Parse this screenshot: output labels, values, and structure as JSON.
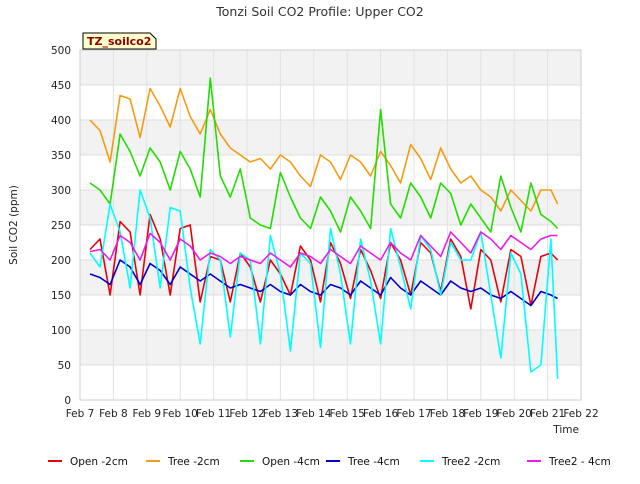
{
  "chart_data": {
    "type": "line",
    "title": "Tonzi Soil CO2 Profile: Upper CO2",
    "xlabel": "Time",
    "ylabel": "Soil CO2 (ppm)",
    "badge": "TZ_soilco2",
    "ylim": [
      0,
      500
    ],
    "yticks": [
      0,
      50,
      100,
      150,
      200,
      250,
      300,
      350,
      400,
      450,
      500
    ],
    "xlim": [
      7,
      22
    ],
    "xticks": [
      {
        "x": 7,
        "label": "Feb 7"
      },
      {
        "x": 8,
        "label": "Feb 8"
      },
      {
        "x": 9,
        "label": "Feb 9"
      },
      {
        "x": 10,
        "label": "Feb 10"
      },
      {
        "x": 11,
        "label": "Feb 11"
      },
      {
        "x": 12,
        "label": "Feb 12"
      },
      {
        "x": 13,
        "label": "Feb 13"
      },
      {
        "x": 14,
        "label": "Feb 14"
      },
      {
        "x": 15,
        "label": "Feb 15"
      },
      {
        "x": 16,
        "label": "Feb 16"
      },
      {
        "x": 17,
        "label": "Feb 17"
      },
      {
        "x": 18,
        "label": "Feb 18"
      },
      {
        "x": 19,
        "label": "Feb 19"
      },
      {
        "x": 20,
        "label": "Feb 20"
      },
      {
        "x": 21,
        "label": "Feb 21"
      },
      {
        "x": 22,
        "label": "Feb 22"
      }
    ],
    "grid": true,
    "legend_position": "bottom",
    "series": [
      {
        "name": "Open -2cm",
        "color": "#e8000b",
        "x": [
          7.3,
          7.6,
          7.9,
          8.2,
          8.5,
          8.8,
          9.1,
          9.4,
          9.7,
          10.0,
          10.3,
          10.6,
          10.9,
          11.2,
          11.5,
          11.8,
          12.1,
          12.4,
          12.7,
          13.0,
          13.3,
          13.6,
          13.9,
          14.2,
          14.5,
          14.8,
          15.1,
          15.4,
          15.7,
          16.0,
          16.3,
          16.6,
          16.9,
          17.2,
          17.5,
          17.8,
          18.1,
          18.4,
          18.7,
          19.0,
          19.3,
          19.6,
          19.9,
          20.2,
          20.5,
          20.8,
          21.1,
          21.3
        ],
        "y": [
          215,
          230,
          150,
          255,
          240,
          150,
          265,
          230,
          150,
          245,
          250,
          140,
          205,
          200,
          140,
          210,
          190,
          140,
          200,
          180,
          150,
          220,
          200,
          140,
          225,
          195,
          145,
          215,
          185,
          145,
          225,
          200,
          150,
          225,
          210,
          155,
          230,
          205,
          130,
          215,
          200,
          140,
          215,
          205,
          135,
          205,
          210,
          200
        ]
      },
      {
        "name": "Tree -2cm",
        "color": "#f39c12",
        "x": [
          7.3,
          7.6,
          7.9,
          8.2,
          8.5,
          8.8,
          9.1,
          9.4,
          9.7,
          10.0,
          10.3,
          10.6,
          10.9,
          11.2,
          11.5,
          11.8,
          12.1,
          12.4,
          12.7,
          13.0,
          13.3,
          13.6,
          13.9,
          14.2,
          14.5,
          14.8,
          15.1,
          15.4,
          15.7,
          16.0,
          16.3,
          16.6,
          16.9,
          17.2,
          17.5,
          17.8,
          18.1,
          18.4,
          18.7,
          19.0,
          19.3,
          19.6,
          19.9,
          20.2,
          20.5,
          20.8,
          21.1,
          21.3
        ],
        "y": [
          400,
          385,
          340,
          435,
          430,
          375,
          445,
          420,
          390,
          445,
          405,
          380,
          415,
          380,
          360,
          350,
          340,
          345,
          330,
          350,
          340,
          320,
          305,
          350,
          340,
          315,
          350,
          340,
          320,
          355,
          335,
          310,
          365,
          345,
          315,
          360,
          330,
          310,
          320,
          300,
          290,
          270,
          300,
          285,
          270,
          300,
          300,
          280
        ]
      },
      {
        "name": "Open -4cm",
        "color": "#22dd00",
        "x": [
          7.3,
          7.6,
          7.9,
          8.2,
          8.5,
          8.8,
          9.1,
          9.4,
          9.7,
          10.0,
          10.3,
          10.6,
          10.9,
          11.2,
          11.5,
          11.8,
          12.1,
          12.4,
          12.7,
          13.0,
          13.3,
          13.6,
          13.9,
          14.2,
          14.5,
          14.8,
          15.1,
          15.4,
          15.7,
          16.0,
          16.3,
          16.6,
          16.9,
          17.2,
          17.5,
          17.8,
          18.1,
          18.4,
          18.7,
          19.0,
          19.3,
          19.6,
          19.9,
          20.2,
          20.5,
          20.8,
          21.1,
          21.3
        ],
        "y": [
          310,
          300,
          280,
          380,
          355,
          320,
          360,
          340,
          300,
          355,
          330,
          290,
          460,
          320,
          290,
          330,
          260,
          250,
          245,
          325,
          290,
          260,
          245,
          290,
          270,
          240,
          290,
          270,
          245,
          415,
          280,
          260,
          310,
          290,
          260,
          310,
          295,
          250,
          280,
          260,
          240,
          320,
          275,
          240,
          310,
          265,
          255,
          245
        ]
      },
      {
        "name": "Tree -4cm",
        "color": "#0000cc",
        "x": [
          7.3,
          7.6,
          7.9,
          8.2,
          8.5,
          8.8,
          9.1,
          9.4,
          9.7,
          10.0,
          10.3,
          10.6,
          10.9,
          11.2,
          11.5,
          11.8,
          12.1,
          12.4,
          12.7,
          13.0,
          13.3,
          13.6,
          13.9,
          14.2,
          14.5,
          14.8,
          15.1,
          15.4,
          15.7,
          16.0,
          16.3,
          16.6,
          16.9,
          17.2,
          17.5,
          17.8,
          18.1,
          18.4,
          18.7,
          19.0,
          19.3,
          19.6,
          19.9,
          20.2,
          20.5,
          20.8,
          21.1,
          21.3
        ],
        "y": [
          180,
          175,
          165,
          200,
          190,
          165,
          195,
          185,
          165,
          190,
          180,
          170,
          180,
          170,
          160,
          165,
          160,
          155,
          165,
          155,
          150,
          165,
          155,
          150,
          165,
          160,
          150,
          170,
          160,
          150,
          175,
          160,
          150,
          170,
          160,
          150,
          170,
          160,
          155,
          160,
          150,
          145,
          155,
          145,
          135,
          155,
          150,
          145
        ]
      },
      {
        "name": "Tree2 -2cm",
        "color": "#00ffff",
        "x": [
          7.3,
          7.6,
          7.9,
          8.2,
          8.5,
          8.8,
          9.1,
          9.4,
          9.7,
          10.0,
          10.3,
          10.6,
          10.9,
          11.2,
          11.5,
          11.8,
          12.1,
          12.4,
          12.7,
          13.0,
          13.3,
          13.6,
          13.9,
          14.2,
          14.5,
          14.8,
          15.1,
          15.4,
          15.7,
          16.0,
          16.3,
          16.6,
          16.9,
          17.2,
          17.5,
          17.8,
          18.1,
          18.4,
          18.7,
          19.0,
          19.3,
          19.6,
          19.9,
          20.2,
          20.5,
          20.8,
          21.1,
          21.3
        ],
        "y": [
          210,
          190,
          280,
          240,
          160,
          300,
          260,
          160,
          275,
          270,
          160,
          80,
          215,
          200,
          90,
          210,
          200,
          80,
          235,
          180,
          70,
          210,
          195,
          75,
          245,
          180,
          80,
          230,
          170,
          80,
          245,
          190,
          130,
          235,
          215,
          150,
          225,
          200,
          200,
          240,
          150,
          60,
          210,
          180,
          40,
          50,
          230,
          30
        ]
      },
      {
        "name": "Tree2 - 4cm",
        "color": "#e81ce8",
        "x": [
          7.3,
          7.6,
          7.9,
          8.2,
          8.5,
          8.8,
          9.1,
          9.4,
          9.7,
          10.0,
          10.3,
          10.6,
          10.9,
          11.2,
          11.5,
          11.8,
          12.1,
          12.4,
          12.7,
          13.0,
          13.3,
          13.6,
          13.9,
          14.2,
          14.5,
          14.8,
          15.1,
          15.4,
          15.7,
          16.0,
          16.3,
          16.6,
          16.9,
          17.2,
          17.5,
          17.8,
          18.1,
          18.4,
          18.7,
          19.0,
          19.3,
          19.6,
          19.9,
          20.2,
          20.5,
          20.8,
          21.1,
          21.3
        ],
        "y": [
          212,
          215,
          200,
          235,
          225,
          200,
          238,
          225,
          200,
          230,
          220,
          200,
          210,
          205,
          195,
          205,
          200,
          195,
          210,
          200,
          190,
          210,
          205,
          195,
          215,
          205,
          195,
          220,
          210,
          200,
          225,
          210,
          200,
          235,
          220,
          205,
          240,
          225,
          210,
          240,
          230,
          215,
          235,
          225,
          215,
          230,
          235,
          235
        ]
      }
    ]
  }
}
